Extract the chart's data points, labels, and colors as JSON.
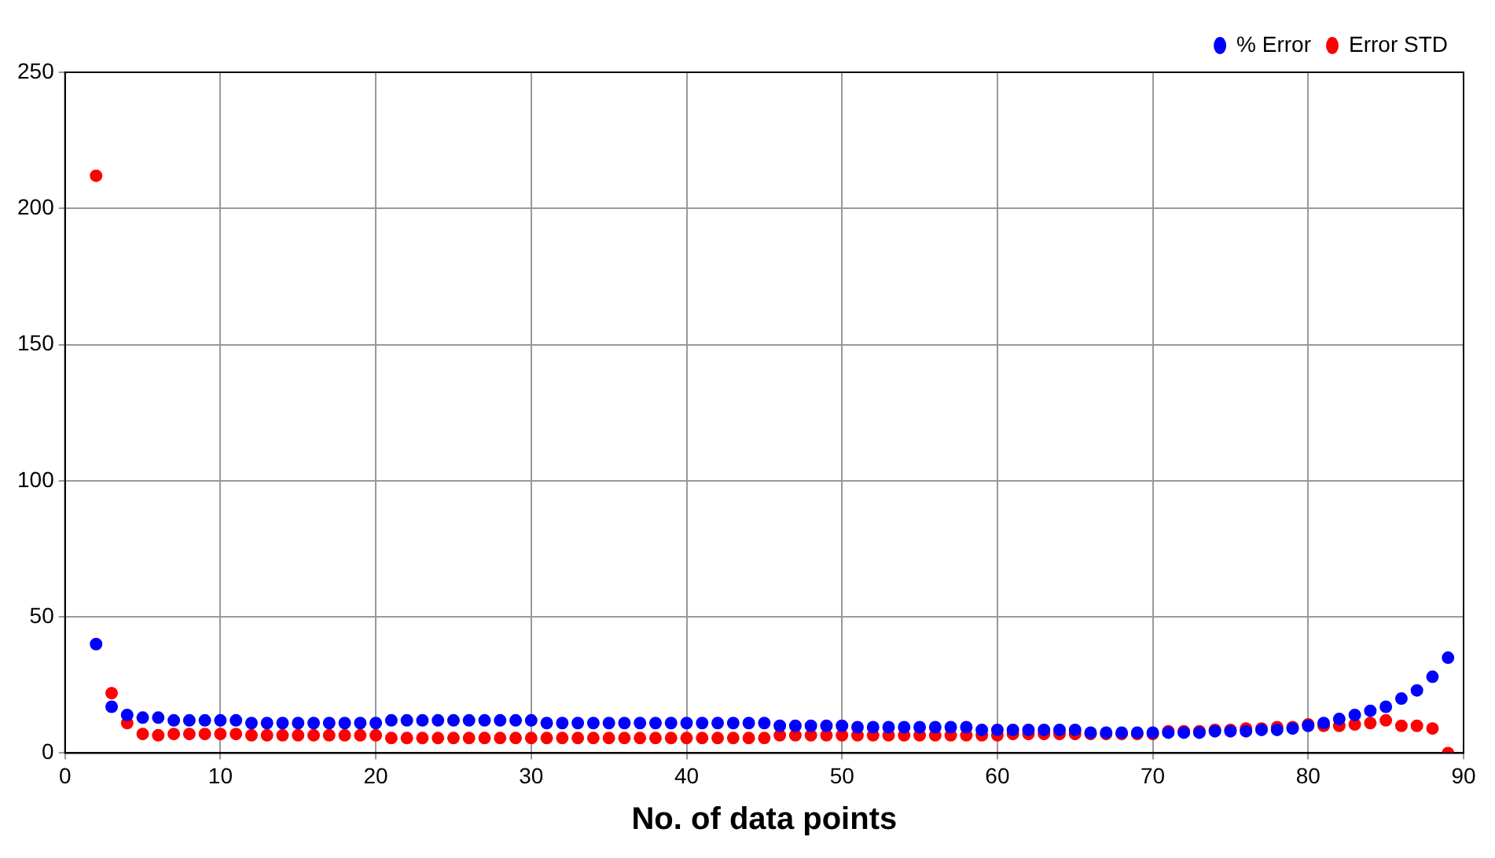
{
  "chart_data": {
    "type": "scatter",
    "xlabel": "No. of data points",
    "x": [
      2,
      3,
      4,
      5,
      6,
      7,
      8,
      9,
      10,
      11,
      12,
      13,
      14,
      15,
      16,
      17,
      18,
      19,
      20,
      21,
      22,
      23,
      24,
      25,
      26,
      27,
      28,
      29,
      30,
      31,
      32,
      33,
      34,
      35,
      36,
      37,
      38,
      39,
      40,
      41,
      42,
      43,
      44,
      45,
      46,
      47,
      48,
      49,
      50,
      51,
      52,
      53,
      54,
      55,
      56,
      57,
      58,
      59,
      60,
      61,
      62,
      63,
      64,
      65,
      66,
      67,
      68,
      69,
      70,
      71,
      72,
      73,
      74,
      75,
      76,
      77,
      78,
      79,
      80,
      81,
      82,
      83,
      84,
      85,
      86,
      87,
      88,
      89
    ],
    "series": [
      {
        "name": "% Error",
        "color": "#0000ff",
        "values": [
          40,
          17,
          14,
          13,
          13,
          12,
          12,
          12,
          12,
          12,
          11,
          11,
          11,
          11,
          11,
          11,
          11,
          11,
          11,
          12,
          12,
          12,
          12,
          12,
          12,
          12,
          12,
          12,
          12,
          11,
          11,
          11,
          11,
          11,
          11,
          11,
          11,
          11,
          11,
          11,
          11,
          11,
          11,
          11,
          10,
          10,
          10,
          10,
          10,
          9.5,
          9.5,
          9.5,
          9.5,
          9.5,
          9.5,
          9.5,
          9.5,
          8.5,
          8.5,
          8.5,
          8.5,
          8.5,
          8.5,
          8.5,
          7.5,
          7.5,
          7.5,
          7.5,
          7.5,
          7.5,
          7.5,
          7.5,
          8,
          8,
          8,
          8.5,
          8.5,
          9,
          10,
          11,
          12.5,
          14,
          15.5,
          17,
          20,
          23,
          28,
          35
        ]
      },
      {
        "name": "Error STD",
        "color": "#ff0000",
        "values": [
          212,
          22,
          11,
          7,
          6.5,
          7,
          7,
          7,
          7,
          7,
          6.5,
          6.5,
          6.5,
          6.5,
          6.5,
          6.5,
          6.5,
          6.5,
          6.5,
          5.5,
          5.5,
          5.5,
          5.5,
          5.5,
          5.5,
          5.5,
          5.5,
          5.5,
          5.5,
          5.5,
          5.5,
          5.5,
          5.5,
          5.5,
          5.5,
          5.5,
          5.5,
          5.5,
          5.5,
          5.5,
          5.5,
          5.5,
          5.5,
          5.5,
          6.5,
          6.5,
          6.5,
          6.5,
          6.5,
          6.5,
          6.5,
          6.5,
          6.5,
          6.5,
          6.5,
          6.5,
          6.5,
          6.5,
          6.5,
          7,
          7,
          7,
          7,
          7,
          7,
          7,
          7,
          7,
          7,
          8,
          8,
          8,
          8.5,
          8.5,
          9,
          9,
          9.5,
          9.5,
          10.5,
          10,
          10,
          10.5,
          11,
          12,
          10,
          10,
          9,
          0
        ]
      }
    ],
    "xlim": [
      0,
      90
    ],
    "xticks": [
      0,
      10,
      20,
      30,
      40,
      50,
      60,
      70,
      80,
      90
    ],
    "ylim": [
      0,
      250
    ],
    "yticks": [
      0,
      50,
      100,
      150,
      200,
      250
    ],
    "grid": true,
    "legend": "top right",
    "marker": "circle"
  }
}
